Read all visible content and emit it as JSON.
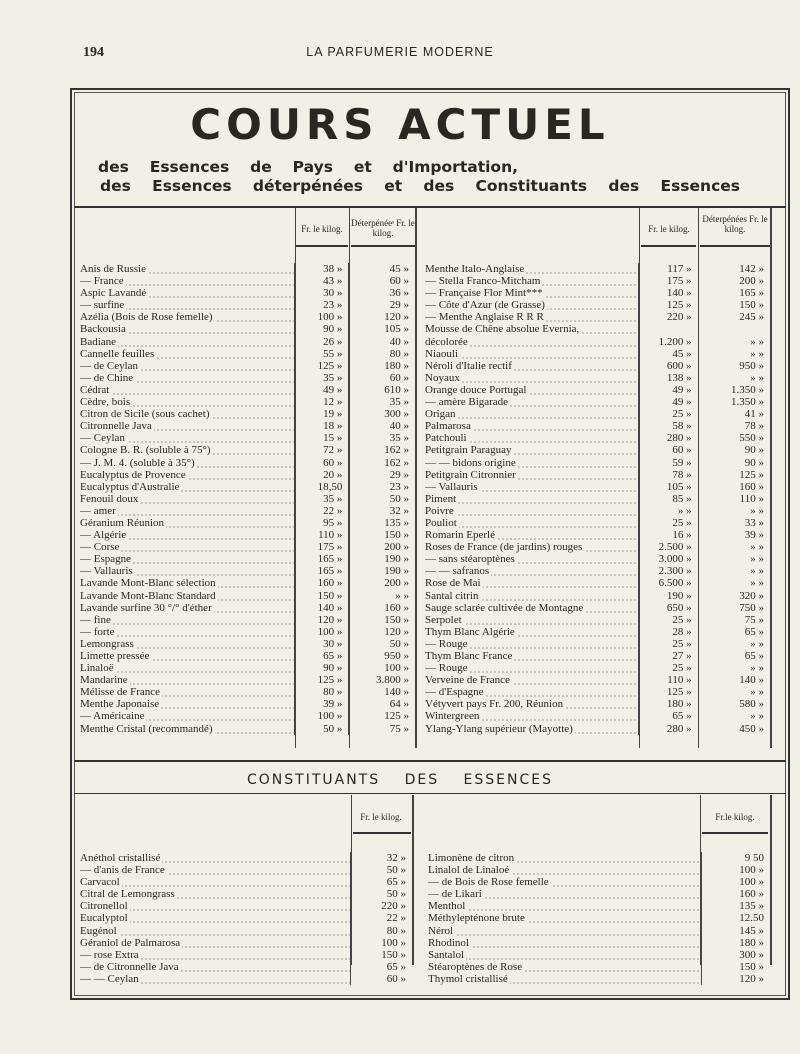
{
  "header": {
    "page_number": "194",
    "journal": "LA PARFUMERIE MODERNE"
  },
  "title": "COURS ACTUEL",
  "subtitle_1": "des Essences de Pays et d'Importation,",
  "subtitle_2": "des Essences déterpénées et des Constituants des Essences",
  "col_price": "Fr. le kilog.",
  "col_deterp_left": "Déterpénéeˢ Fr. le kilog.",
  "col_deterp_right": "Déterpénées Fr. le kilog.",
  "essences_left": [
    [
      "Anis de Russie",
      "38 »",
      "45 »",
      0
    ],
    [
      "— France",
      "43 »",
      "60 »",
      1
    ],
    [
      "Aspic Lavandé",
      "30 »",
      "36 »",
      0
    ],
    [
      "— surfine",
      "23 »",
      "29 »",
      1
    ],
    [
      "Azélia (Bois de Rose femelle)",
      "100 »",
      "120 »",
      0
    ],
    [
      "Backousia",
      "90 »",
      "105 »",
      0
    ],
    [
      "Badiane",
      "26 »",
      "40 »",
      0
    ],
    [
      "Cannelle feuilles",
      "55 »",
      "80 »",
      0
    ],
    [
      "— de Ceylan",
      "125 »",
      "180 »",
      1
    ],
    [
      "— de Chine",
      "35 »",
      "60 »",
      1
    ],
    [
      "Cédrat",
      "49 »",
      "610 »",
      0
    ],
    [
      "Cèdre, bois",
      "12 »",
      "35 »",
      0
    ],
    [
      "Citron de Sicile (sous cachet)",
      "19 »",
      "300 »",
      0
    ],
    [
      "Citronnelle Java",
      "18 »",
      "40 »",
      0
    ],
    [
      "— Ceylan",
      "15 »",
      "35 »",
      1
    ],
    [
      "Cologne B. R. (soluble à 75°)",
      "72 »",
      "162 »",
      0
    ],
    [
      "— J. M. 4. (soluble à 35°)",
      "60 »",
      "162 »",
      1
    ],
    [
      "Eucalyptus de Provence",
      "20 »",
      "29 »",
      0
    ],
    [
      "Eucalyptus d'Australie",
      "18,50",
      "23 »",
      0
    ],
    [
      "Fenouil doux",
      "35 »",
      "50 »",
      0
    ],
    [
      "— amer",
      "22 »",
      "32 »",
      1
    ],
    [
      "Géranium Réunion",
      "95 »",
      "135 »",
      0
    ],
    [
      "— Algérie",
      "110 »",
      "150 »",
      1
    ],
    [
      "— Corse",
      "175 »",
      "200 »",
      1
    ],
    [
      "— Espagne",
      "165 »",
      "190 »",
      1
    ],
    [
      "— Vallauris",
      "165 »",
      "190 »",
      1
    ],
    [
      "Lavande Mont-Blanc sélection",
      "160 »",
      "200 »",
      0
    ],
    [
      "Lavande Mont-Blanc Standard",
      "150 »",
      "» »",
      0
    ],
    [
      "Lavande surfine 30 °/° d'éther",
      "140 »",
      "160 »",
      0
    ],
    [
      "— fine",
      "120 »",
      "150 »",
      1
    ],
    [
      "— forte",
      "100 »",
      "120 »",
      1
    ],
    [
      "Lemongrass",
      "30 »",
      "50 »",
      0
    ],
    [
      "Limette pressée",
      "65 »",
      "950 »",
      0
    ],
    [
      "Linaloë",
      "90 »",
      "100 »",
      0
    ],
    [
      "Mandarine",
      "125 »",
      "3.800 »",
      0
    ],
    [
      "Mélisse de France",
      "80 »",
      "140 »",
      0
    ],
    [
      "Menthe Japonaise",
      "39 »",
      "64 »",
      0
    ],
    [
      "— Américaine",
      "100 »",
      "125 »",
      1
    ],
    [
      "Menthe Cristal (recommandé)",
      "50 »",
      "75 »",
      0
    ]
  ],
  "essences_right": [
    [
      "Menthe Italo-Anglaise",
      "117 »",
      "142 »",
      0
    ],
    [
      "— Stella Franco-Mitcham",
      "175 »",
      "200 »",
      1
    ],
    [
      "— Française Flor Mint***",
      "140 »",
      "165 »",
      1
    ],
    [
      "— Côte d'Azur (de Grasse)",
      "125 »",
      "150 »",
      1
    ],
    [
      "— Menthe Anglaise R R R",
      "220 »",
      "245 »",
      1
    ],
    [
      "Mousse de Chêne absolue Evernia,",
      "",
      "",
      0
    ],
    [
      "décolorée",
      "1.200 »",
      "» »",
      1
    ],
    [
      "Niaouli",
      "45 »",
      "» »",
      0
    ],
    [
      "Néroli d'Italie rectif",
      "600 »",
      "950 »",
      0
    ],
    [
      "Noyaux",
      "138 »",
      "» »",
      0
    ],
    [
      "Orange douce Portugal",
      "49 »",
      "1.350 »",
      0
    ],
    [
      "— amère Bigarade",
      "49 »",
      "1.350 »",
      1
    ],
    [
      "Origan",
      "25 »",
      "41 »",
      0
    ],
    [
      "Palmarosa",
      "58 »",
      "78 »",
      0
    ],
    [
      "Patchouli",
      "280 »",
      "550 »",
      0
    ],
    [
      "Petitgrain Paraguay",
      "60 »",
      "90 »",
      0
    ],
    [
      "— — bidons origine",
      "59 »",
      "90 »",
      1
    ],
    [
      "Petitgrain Citronnier",
      "78 »",
      "125 »",
      0
    ],
    [
      "— Vallauris",
      "105 »",
      "160 »",
      1
    ],
    [
      "Piment",
      "85 »",
      "110 »",
      0
    ],
    [
      "Poivre",
      "» »",
      "» »",
      0
    ],
    [
      "Pouliot",
      "25 »",
      "33 »",
      0
    ],
    [
      "Romarin Eperlé",
      "16 »",
      "39 »",
      0
    ],
    [
      "Roses de France (de jardins) rouges",
      "2.500 »",
      "» »",
      0
    ],
    [
      "— sans stéaroptènes",
      "3.000 »",
      "» »",
      1
    ],
    [
      "— — safranos",
      "2.300 »",
      "» »",
      1
    ],
    [
      "Rose de Mai",
      "6.500 »",
      "» »",
      0
    ],
    [
      "Santal citrin",
      "190 »",
      "320 »",
      0
    ],
    [
      "Sauge sclarée cultivée de Montagne",
      "650 »",
      "750 »",
      0
    ],
    [
      "Serpolet",
      "25 »",
      "75 »",
      0
    ],
    [
      "Thym Blanc Algérie",
      "28 »",
      "65 »",
      0
    ],
    [
      "— Rouge",
      "25 »",
      "» »",
      1
    ],
    [
      "Thym Blanc France",
      "27 »",
      "65 »",
      0
    ],
    [
      "— Rouge",
      "25 »",
      "» »",
      1
    ],
    [
      "Verveine de France",
      "110 »",
      "140 »",
      0
    ],
    [
      "— d'Espagne",
      "125 »",
      "» »",
      1
    ],
    [
      "Vétyvert pays Fr. 200, Réunion",
      "180 »",
      "580 »",
      0
    ],
    [
      "Wintergreen",
      "65 »",
      "» »",
      0
    ],
    [
      "Ylang-Ylang supérieur (Mayotte)",
      "280 »",
      "450 »",
      0
    ]
  ],
  "section2_title": "CONSTITUANTS DES ESSENCES",
  "col_price_right2": "Fr.le kilog.",
  "constituants_left": [
    [
      "Anéthol cristallisé",
      "32 »",
      0
    ],
    [
      "— d'anis de France",
      "50 »",
      1
    ],
    [
      "Carvacol",
      "65 »",
      0
    ],
    [
      "Citral de Lemongrass",
      "50 »",
      0
    ],
    [
      "Citronellol",
      "220 »",
      0
    ],
    [
      "Eucalyptol",
      "22 »",
      0
    ],
    [
      "Eugénol",
      "80 »",
      0
    ],
    [
      "Géraniol de Palmarosa",
      "100 »",
      0
    ],
    [
      "— rose Extra",
      "150 »",
      1
    ],
    [
      "— de Citronnelle Java",
      "65 »",
      1
    ],
    [
      "— — Ceylan",
      "60 »",
      1
    ]
  ],
  "constituants_right": [
    [
      "Limonène de citron",
      "9 50",
      0
    ],
    [
      "Linalol de Linaloé",
      "100 »",
      0
    ],
    [
      "— de Bois de Rose femelle",
      "100 »",
      1
    ],
    [
      "— de Likari",
      "160 »",
      1
    ],
    [
      "Menthol",
      "135 »",
      0
    ],
    [
      "Méthylepténone brute",
      "12.50",
      0
    ],
    [
      "Nérol",
      "145 »",
      0
    ],
    [
      "Rhodinol",
      "180 »",
      0
    ],
    [
      "Santalol",
      "300 »",
      0
    ],
    [
      "Stéaroptènes de Rose",
      "150 »",
      0
    ],
    [
      "Thymol cristallisé",
      "120 »",
      0
    ]
  ]
}
